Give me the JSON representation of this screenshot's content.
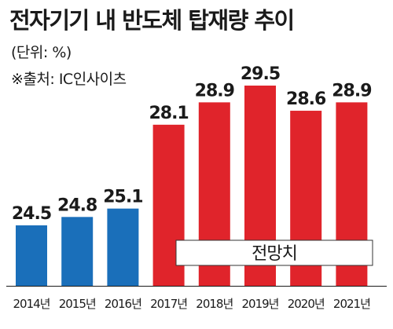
{
  "chart_data": {
    "type": "bar",
    "title": "전자기기 내 반도체 탑재량 추이",
    "unit_label": "(단위: %)",
    "source": "※출처: IC인사이츠",
    "categories": [
      "2014년",
      "2015년",
      "2016년",
      "2017년",
      "2018년",
      "2019년",
      "2020년",
      "2021년"
    ],
    "values": [
      24.5,
      24.8,
      25.1,
      28.1,
      28.9,
      29.5,
      28.6,
      28.9
    ],
    "value_labels": [
      "24.5",
      "24.8",
      "25.1",
      "28.1",
      "28.9",
      "29.5",
      "28.6",
      "28.9"
    ],
    "forecast_label": "전망치",
    "forecast_start_index": 3,
    "colors": {
      "actual": "#1a6fba",
      "forecast": "#e0242b",
      "forecast_box": "#ffffff"
    }
  }
}
